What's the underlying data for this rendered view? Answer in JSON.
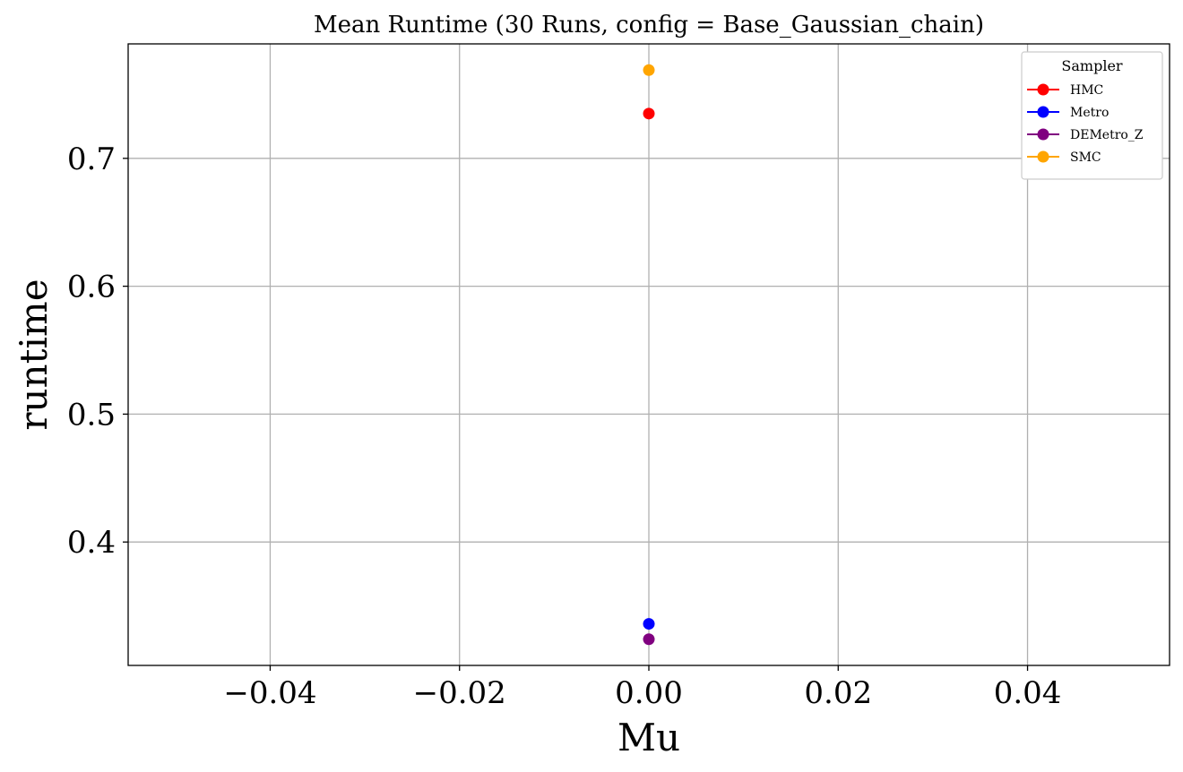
{
  "chart_data": {
    "type": "scatter",
    "title": "Mean Runtime (30 Runs, config = Base_Gaussian_chain)",
    "xlabel": "Mu",
    "ylabel": "runtime",
    "xlim": [
      -0.055,
      0.055
    ],
    "ylim": [
      0.3035,
      0.7895
    ],
    "x_ticks": [
      -0.04,
      -0.02,
      0.0,
      0.02,
      0.04
    ],
    "x_tick_labels": [
      "−0.04",
      "−0.02",
      "0.00",
      "0.02",
      "0.04"
    ],
    "y_ticks": [
      0.4,
      0.5,
      0.6,
      0.7
    ],
    "y_tick_labels": [
      "0.4",
      "0.5",
      "0.6",
      "0.7"
    ],
    "grid": true,
    "legend": {
      "title": "Sampler",
      "position": "top-right"
    },
    "series": [
      {
        "name": "HMC",
        "color": "#ff0000",
        "points": [
          {
            "x": 0.0,
            "y": 0.735
          }
        ]
      },
      {
        "name": "Metro",
        "color": "#0000ff",
        "points": [
          {
            "x": 0.0,
            "y": 0.336
          }
        ]
      },
      {
        "name": "DEMetro_Z",
        "color": "#800080",
        "points": [
          {
            "x": 0.0,
            "y": 0.324
          }
        ]
      },
      {
        "name": "SMC",
        "color": "#ffa500",
        "points": [
          {
            "x": 0.0,
            "y": 0.769
          }
        ]
      }
    ]
  }
}
